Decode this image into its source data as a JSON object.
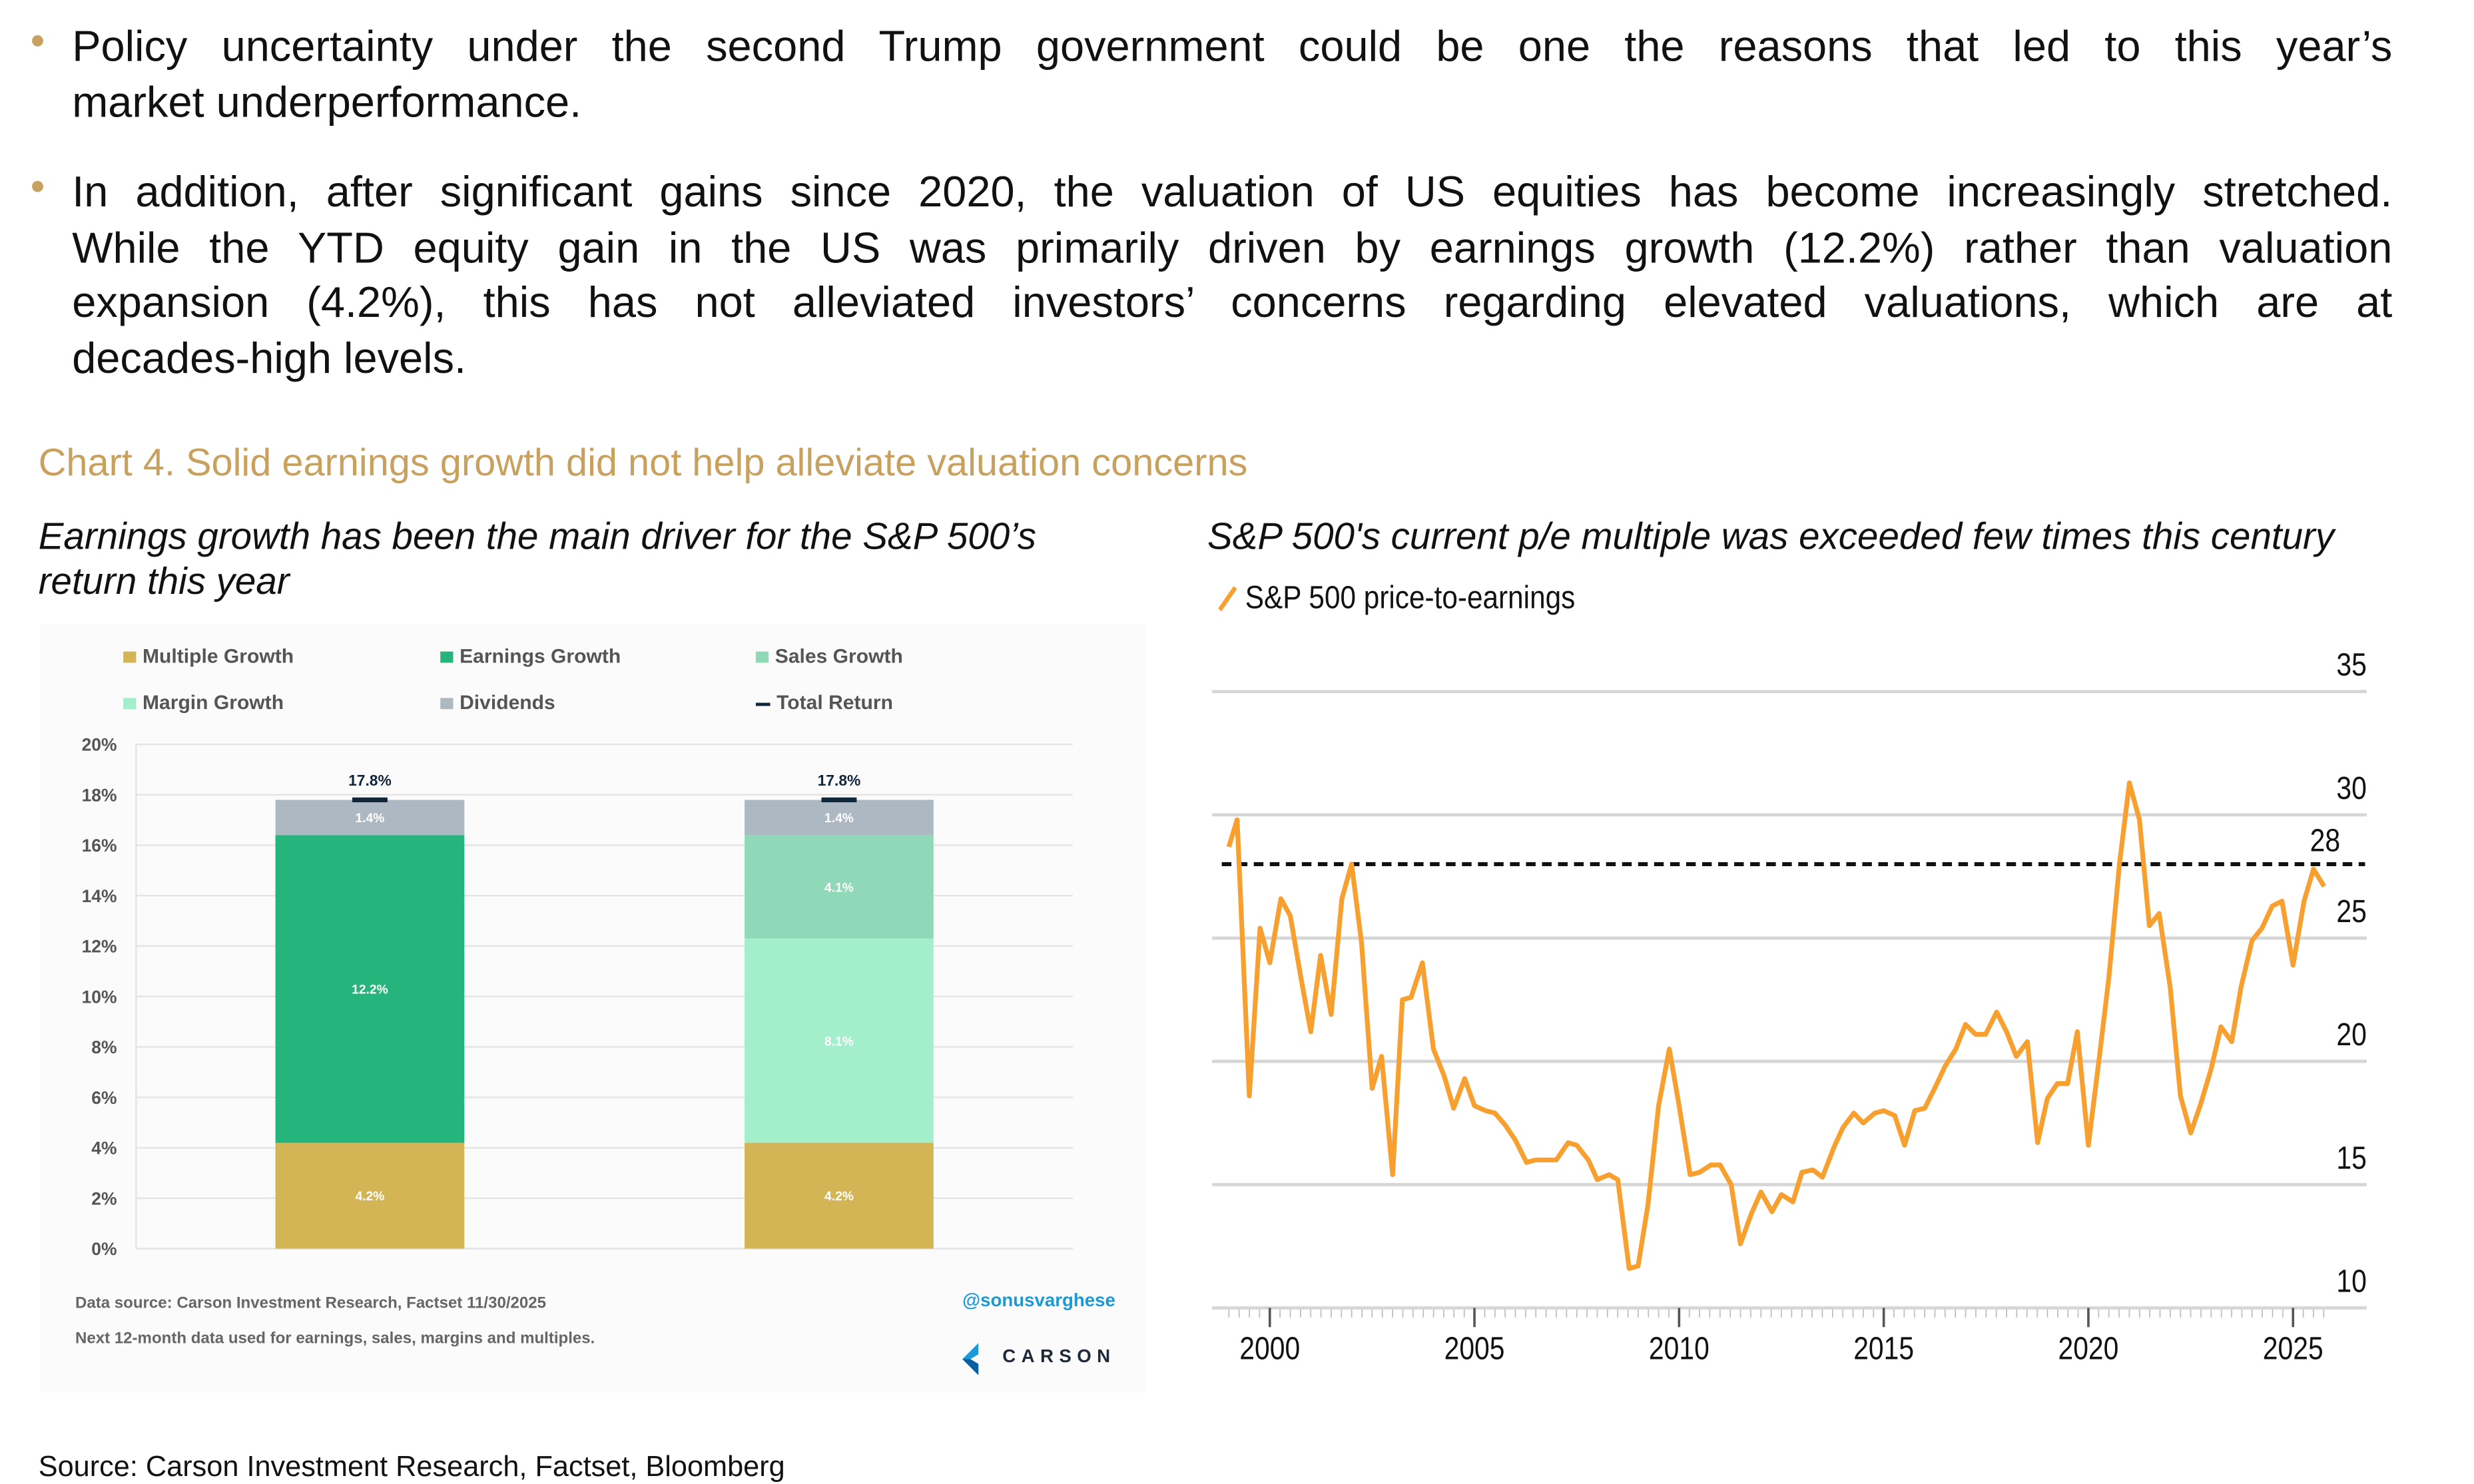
{
  "bullets": [
    {
      "lines": [
        "Policy uncertainty under the second Trump government could be one the reasons that led to this year’s",
        "market underperformance."
      ]
    },
    {
      "lines": [
        "In addition, after significant gains since 2020, the valuation of US equities has become increasingly stretched.",
        "While the YTD equity gain in the US was primarily driven by earnings growth (12.2%) rather than valuation",
        "expansion (4.2%), this has not alleviated investors’ concerns regarding elevated valuations, which are at",
        "decades-high levels."
      ]
    }
  ],
  "chart_title": "Chart 4. Solid earnings growth did not help alleviate valuation concerns",
  "left_subtitle_lines": [
    "Earnings growth has been the main driver for the S&P 500’s",
    "return this year"
  ],
  "right_subtitle": "S&P 500's current p/e multiple was exceeded few times this century",
  "right_legend": "S&P 500 price-to-earnings",
  "left_footer": {
    "source": "Data source: Carson Investment Research, Factset   11/30/2025",
    "note": "Next 12-month data used for earnings, sales, margins and multiples.",
    "handle": "@sonusvarghese",
    "logo": "CARSON"
  },
  "source": "Source: Carson Investment Research, Factset, Bloomberg",
  "colors": {
    "accent": "#c9a15f",
    "multiple": "#d4b556",
    "earnings": "#25b47b",
    "sales": "#8fd9b8",
    "margin": "#a3efcb",
    "dividends": "#adb9c2",
    "total": "#12263a",
    "pe_line": "#f7a030"
  },
  "chart_data": [
    {
      "type": "bar",
      "stacked": true,
      "legend": [
        {
          "name": "Multiple Growth",
          "color": "#d4b556"
        },
        {
          "name": "Earnings Growth",
          "color": "#25b47b"
        },
        {
          "name": "Sales Growth",
          "color": "#8fd9b8"
        },
        {
          "name": "Margin Growth",
          "color": "#a3efcb"
        },
        {
          "name": "Dividends",
          "color": "#adb9c2"
        },
        {
          "name": "Total Return",
          "color": "#12263a"
        }
      ],
      "legend_placement": "top",
      "ylim": [
        0,
        20
      ],
      "yticks": [
        "0%",
        "2%",
        "4%",
        "6%",
        "8%",
        "10%",
        "12%",
        "14%",
        "16%",
        "18%",
        "20%"
      ],
      "grid": true,
      "bars": [
        {
          "segments": [
            {
              "series": "Multiple Growth",
              "value": 4.2,
              "label": "4.2%"
            },
            {
              "series": "Earnings Growth",
              "value": 12.2,
              "label": "12.2%"
            },
            {
              "series": "Dividends",
              "value": 1.4,
              "label": "1.4%"
            }
          ],
          "total": 17.8,
          "total_label": "17.8%"
        },
        {
          "segments": [
            {
              "series": "Multiple Growth",
              "value": 4.2,
              "label": "4.2%"
            },
            {
              "series": "Margin Growth",
              "value": 8.1,
              "label": "8.1%"
            },
            {
              "series": "Sales Growth",
              "value": 4.1,
              "label": "4.1%"
            },
            {
              "series": "Dividends",
              "value": 1.4,
              "label": "1.4%"
            }
          ],
          "total": 17.8,
          "total_label": "17.8%"
        }
      ]
    },
    {
      "type": "line",
      "series": [
        {
          "name": "S&P 500 price-to-earnings",
          "color": "#f7a030",
          "x": [
            1999.0,
            1999.2,
            1999.5,
            1999.76,
            2000.0,
            2000.27,
            2000.5,
            2000.76,
            2001.0,
            2001.24,
            2001.5,
            2001.76,
            2002.0,
            2002.24,
            2002.5,
            2002.73,
            2003.0,
            2003.24,
            2003.45,
            2003.73,
            2004.0,
            2004.26,
            2004.49,
            2004.76,
            2005.0,
            2005.27,
            2005.5,
            2005.76,
            2006.0,
            2006.27,
            2006.5,
            2006.78,
            2007.0,
            2007.29,
            2007.5,
            2007.78,
            2008.0,
            2008.29,
            2008.5,
            2008.78,
            2009.0,
            2009.24,
            2009.5,
            2009.76,
            2010.0,
            2010.27,
            2010.5,
            2010.78,
            2011.0,
            2011.27,
            2011.5,
            2011.76,
            2012.0,
            2012.27,
            2012.5,
            2012.78,
            2013.0,
            2013.27,
            2013.5,
            2013.78,
            2014.0,
            2014.27,
            2014.5,
            2014.78,
            2015.0,
            2015.27,
            2015.51,
            2015.76,
            2016.0,
            2016.27,
            2016.5,
            2016.76,
            2017.0,
            2017.24,
            2017.49,
            2017.76,
            2018.0,
            2018.24,
            2018.51,
            2018.76,
            2019.0,
            2019.24,
            2019.49,
            2019.73,
            2020.0,
            2020.27,
            2020.5,
            2020.76,
            2021.0,
            2021.25,
            2021.49,
            2021.73,
            2022.0,
            2022.25,
            2022.5,
            2022.73,
            2023.0,
            2023.24,
            2023.5,
            2023.73,
            2024.0,
            2024.24,
            2024.49,
            2024.73,
            2025.0,
            2025.27,
            2025.5,
            2025.76
          ],
          "y": [
            28.7,
            29.8,
            18.6,
            25.4,
            24.0,
            26.6,
            25.9,
            23.4,
            21.2,
            24.3,
            21.9,
            26.6,
            28.0,
            24.8,
            18.9,
            20.2,
            15.4,
            22.5,
            22.6,
            24.0,
            20.5,
            19.4,
            18.1,
            19.3,
            18.2,
            18.0,
            17.9,
            17.4,
            16.8,
            15.9,
            16.0,
            16.0,
            16.0,
            16.7,
            16.6,
            16.0,
            15.2,
            15.4,
            15.2,
            11.6,
            11.7,
            14.2,
            18.2,
            20.5,
            18.2,
            15.4,
            15.5,
            15.8,
            15.8,
            15.0,
            12.6,
            13.8,
            14.7,
            13.9,
            14.6,
            14.3,
            15.5,
            15.6,
            15.3,
            16.5,
            17.3,
            17.9,
            17.5,
            17.9,
            18.0,
            17.8,
            16.6,
            18.0,
            18.1,
            19.0,
            19.8,
            20.5,
            21.5,
            21.1,
            21.1,
            22.0,
            21.2,
            20.2,
            20.8,
            16.7,
            18.5,
            19.1,
            19.1,
            21.2,
            16.6,
            20.2,
            23.4,
            28.0,
            31.3,
            29.8,
            25.5,
            26.0,
            23.0,
            18.6,
            17.1,
            18.2,
            19.7,
            21.4,
            20.8,
            23.0,
            24.9,
            25.4,
            26.3,
            26.5,
            23.9,
            26.5,
            27.8,
            27.1
          ]
        }
      ],
      "reference_line": {
        "value": 28,
        "label": "28",
        "style": "dashed"
      },
      "ylim": [
        10,
        35
      ],
      "yticks": [
        "10",
        "15",
        "20",
        "25",
        "30",
        "35"
      ],
      "xlim": [
        1998.5,
        2026
      ],
      "xticks": [
        "2000",
        "2005",
        "2010",
        "2015",
        "2020",
        "2025"
      ],
      "grid": true,
      "legend_placement": "top-left"
    }
  ]
}
